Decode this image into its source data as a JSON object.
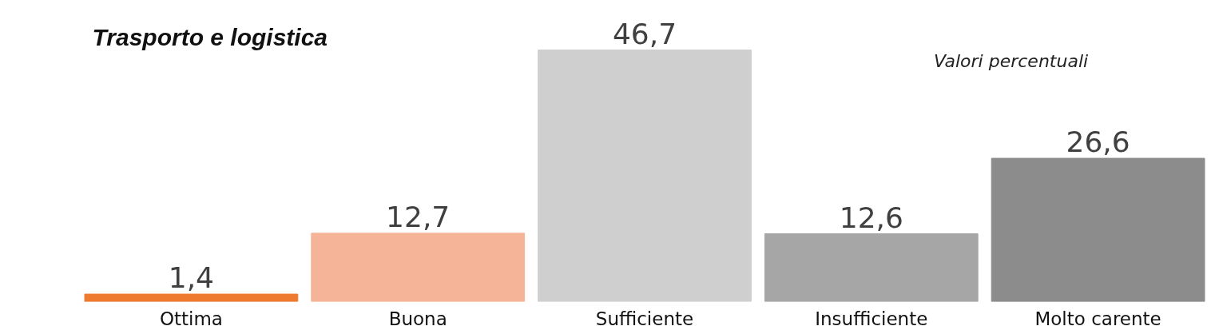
{
  "chart_data": {
    "type": "bar",
    "title": "Trasporto e logistica",
    "annotations": [
      "Valori percentuali"
    ],
    "categories": [
      "Ottima",
      "Buona",
      "Sufficiente",
      "Insufficiente",
      "Molto carente"
    ],
    "values": [
      1.4,
      12.7,
      46.7,
      12.6,
      26.6
    ],
    "colors": [
      "#ee7a30",
      "#f5b497",
      "#cfcfcf",
      "#a6a6a6",
      "#8c8c8c"
    ],
    "value_labels": [
      "1,4",
      "12,7",
      "46,7",
      "12,6",
      "26,6"
    ],
    "grid": false
  }
}
